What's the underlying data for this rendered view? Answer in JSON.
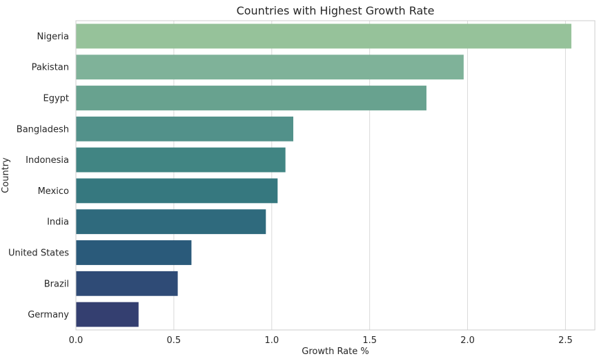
{
  "chart_data": {
    "type": "bar",
    "orientation": "horizontal",
    "title": "Countries with Highest Growth Rate",
    "xlabel": "Growth Rate %",
    "ylabel": "Country",
    "categories": [
      "Nigeria",
      "Pakistan",
      "Egypt",
      "Bangladesh",
      "Indonesia",
      "Mexico",
      "India",
      "United States",
      "Brazil",
      "Germany"
    ],
    "values": [
      2.53,
      1.98,
      1.79,
      1.11,
      1.07,
      1.03,
      0.97,
      0.59,
      0.52,
      0.32
    ],
    "xlim": [
      0,
      2.65
    ],
    "xticks": [
      0.0,
      0.5,
      1.0,
      1.5,
      2.0,
      2.5
    ],
    "xtick_labels": [
      "0.0",
      "0.5",
      "1.0",
      "1.5",
      "2.0",
      "2.5"
    ],
    "grid": "vertical",
    "colors": [
      "#96c29a",
      "#7fb299",
      "#68a28f",
      "#52918a",
      "#418583",
      "#36787f",
      "#2f6a7d",
      "#2a5a7a",
      "#2f4b76",
      "#343f70"
    ]
  }
}
